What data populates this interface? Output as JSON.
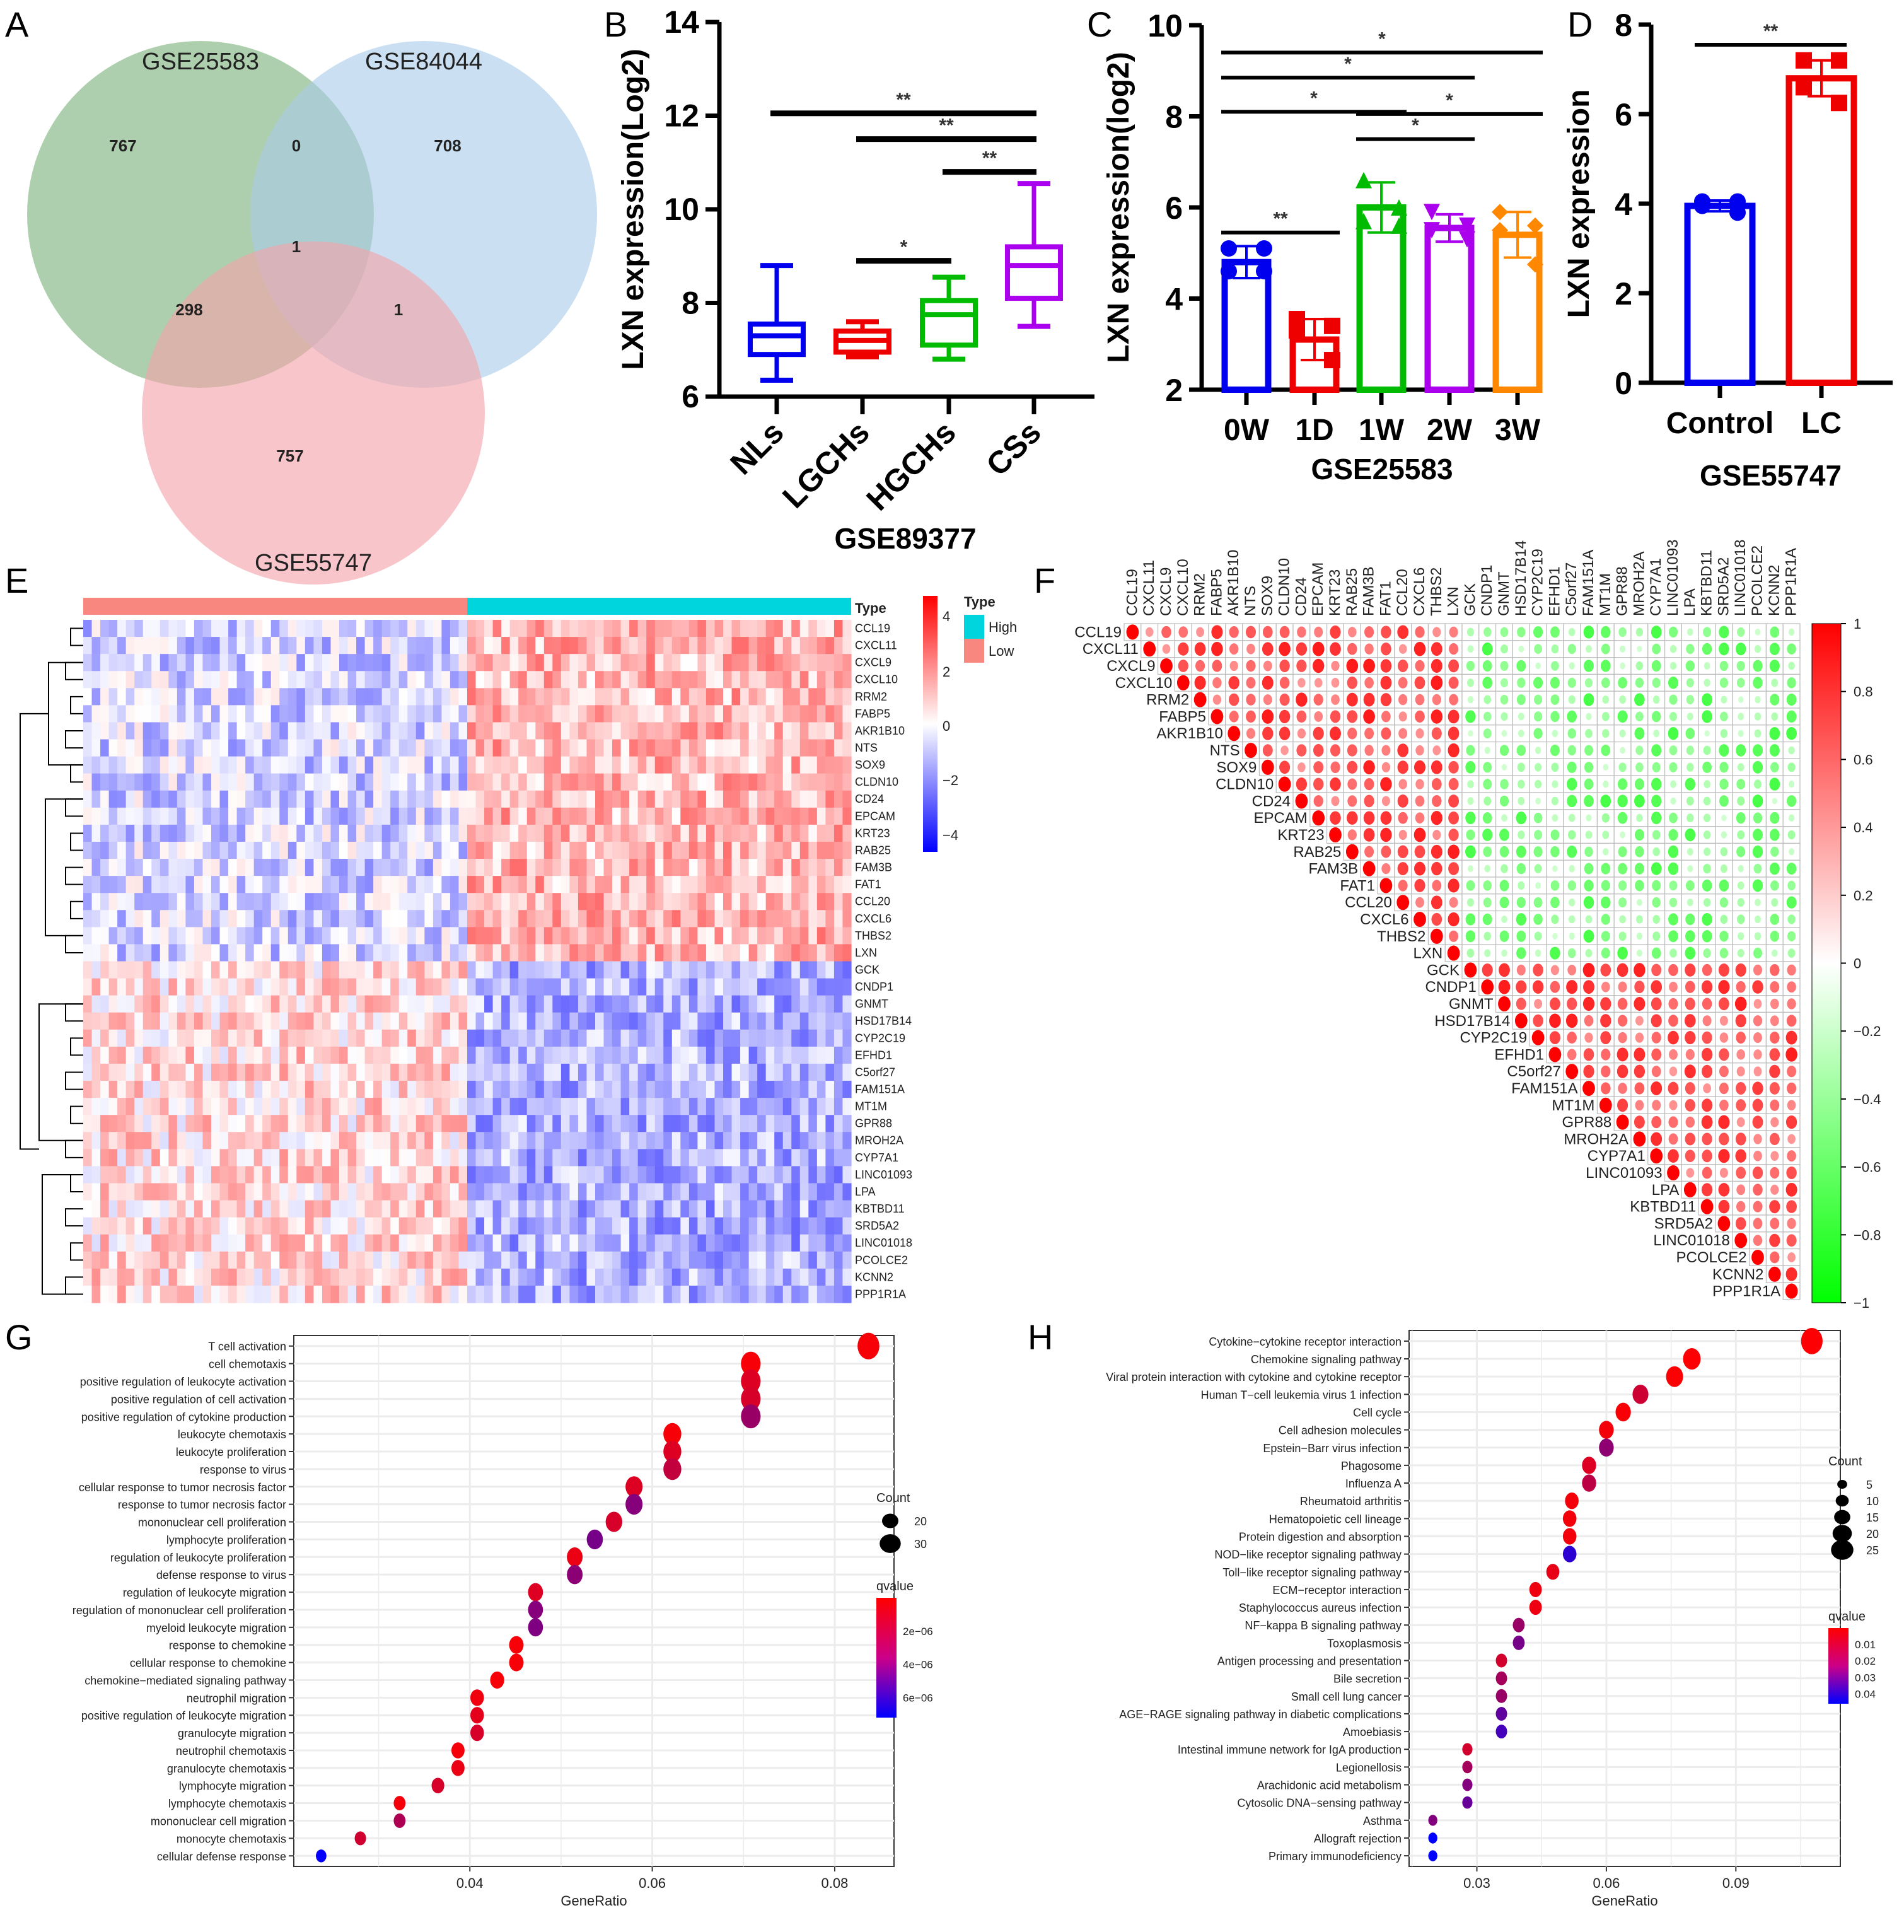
{
  "panels": {
    "A": "A",
    "B": "B",
    "C": "C",
    "D": "D",
    "E": "E",
    "F": "F",
    "G": "G",
    "H": "H"
  },
  "chart_data": [
    {
      "id": "A",
      "type": "venn",
      "sets": [
        {
          "name": "GSE25583",
          "color": "#7cb27a"
        },
        {
          "name": "GSE84044",
          "color": "#a9cbe8"
        },
        {
          "name": "GSE55747",
          "color": "#f4a3aa"
        }
      ],
      "regions": {
        "only_GSE25583": 767,
        "only_GSE84044": 708,
        "only_GSE55747": 757,
        "GSE25583_GSE84044": 0,
        "GSE25583_GSE55747": 298,
        "GSE84044_GSE55747": 1,
        "all_three": 1
      }
    },
    {
      "id": "B",
      "type": "boxplot",
      "xlabel": "GSE89377",
      "ylabel": "LXN expression(Log2)",
      "ylim": [
        6,
        14
      ],
      "yticks": [
        "6",
        "8",
        "10",
        "12",
        "14"
      ],
      "categories": [
        "NLs",
        "LGCHs",
        "HGCHs",
        "CSs"
      ],
      "colors": [
        "#0000ee",
        "#ee0000",
        "#00bb00",
        "#aa00ee"
      ],
      "boxes": [
        {
          "min": 6.35,
          "q1": 6.9,
          "median": 7.3,
          "q3": 7.55,
          "max": 8.8
        },
        {
          "min": 6.85,
          "q1": 6.95,
          "median": 7.2,
          "q3": 7.4,
          "max": 7.6
        },
        {
          "min": 6.8,
          "q1": 7.1,
          "median": 7.75,
          "q3": 8.05,
          "max": 8.55
        },
        {
          "min": 7.5,
          "q1": 8.1,
          "median": 8.8,
          "q3": 9.2,
          "max": 10.55
        }
      ],
      "significance": [
        {
          "from": 0,
          "to": 3,
          "y": 12.05,
          "label": "**"
        },
        {
          "from": 1,
          "to": 3,
          "y": 11.5,
          "label": "**"
        },
        {
          "from": 2,
          "to": 3,
          "y": 10.8,
          "label": "**"
        },
        {
          "from": 1,
          "to": 2,
          "y": 8.9,
          "label": "*"
        }
      ]
    },
    {
      "id": "C",
      "type": "bar",
      "xlabel": "GSE25583",
      "ylabel": "LXN expression(log2)",
      "ylim": [
        2,
        10
      ],
      "yticks": [
        "2",
        "4",
        "6",
        "8",
        "10"
      ],
      "categories": [
        "0W",
        "1D",
        "1W",
        "2W",
        "3W"
      ],
      "colors": [
        "#0000ee",
        "#ee0000",
        "#00bb00",
        "#aa00ee",
        "#ff8800"
      ],
      "markers": [
        "circle",
        "square",
        "triangle-up",
        "triangle-down",
        "diamond"
      ],
      "values": [
        4.8,
        3.1,
        6.0,
        5.55,
        5.4
      ],
      "errors": [
        0.35,
        0.45,
        0.55,
        0.3,
        0.5
      ],
      "points": [
        [
          5.1,
          5.1,
          4.6,
          4.6
        ],
        [
          3.55,
          3.4,
          3.3,
          2.65
        ],
        [
          6.6,
          6.0,
          5.7,
          5.6
        ],
        [
          5.9,
          5.6,
          5.5,
          5.3
        ],
        [
          5.9,
          5.6,
          5.5,
          4.75
        ]
      ],
      "significance": [
        {
          "from": 0,
          "to": 4,
          "y": 9.4,
          "label": "*"
        },
        {
          "from": 0,
          "to": 3,
          "y": 8.85,
          "label": "*"
        },
        {
          "from": 0,
          "to": 2,
          "y": 8.1,
          "label": "*"
        },
        {
          "from": 2,
          "to": 4,
          "y": 8.05,
          "label": "*"
        },
        {
          "from": 2,
          "to": 3,
          "y": 7.5,
          "label": "*"
        },
        {
          "from": 0,
          "to": 1,
          "y": 5.45,
          "label": "**"
        }
      ]
    },
    {
      "id": "D",
      "type": "bar",
      "xlabel": "GSE55747",
      "ylabel": "LXN expression",
      "ylim": [
        0,
        8
      ],
      "yticks": [
        "0",
        "2",
        "4",
        "6",
        "8"
      ],
      "categories": [
        "Control",
        "LC"
      ],
      "colors": [
        "#0000ee",
        "#ee0000"
      ],
      "markers": [
        "circle",
        "square"
      ],
      "values": [
        3.95,
        6.8
      ],
      "errors": [
        0.12,
        0.4
      ],
      "points": [
        [
          4.05,
          4.05,
          3.95,
          3.8
        ],
        [
          7.2,
          7.2,
          6.6,
          6.25
        ]
      ],
      "significance": [
        {
          "from": 0,
          "to": 1,
          "y": 7.55,
          "label": "**"
        }
      ]
    },
    {
      "id": "E",
      "type": "heatmap",
      "annotation_title": "Type",
      "groups": [
        {
          "name": "Low",
          "color": "#f8877f"
        },
        {
          "name": "High",
          "color": "#00d5dd"
        }
      ],
      "legend_order": [
        "High",
        "Low"
      ],
      "samples_per_group": 45,
      "colorbar": {
        "min": -4.5,
        "max": 4.5,
        "ticks": [
          "4",
          "2",
          "0",
          "−2",
          "−4"
        ],
        "low": "#0000ff",
        "mid": "#ffffff",
        "high": "#ff0000"
      },
      "genes_up_in_high": [
        "CCL19",
        "CXCL11",
        "CXCL9",
        "CXCL10",
        "RRM2",
        "FABP5",
        "AKR1B10",
        "NTS",
        "SOX9",
        "CLDN10",
        "CD24",
        "EPCAM",
        "KRT23",
        "RAB25",
        "FAM3B",
        "FAT1",
        "CCL20",
        "CXCL6",
        "THBS2",
        "LXN"
      ],
      "genes_down_in_high": [
        "GCK",
        "CNDP1",
        "GNMT",
        "HSD17B14",
        "CYP2C19",
        "EFHD1",
        "C5orf27",
        "FAM151A",
        "MT1M",
        "GPR88",
        "MROH2A",
        "CYP7A1",
        "LINC01093",
        "LPA",
        "KBTBD11",
        "SRD5A2",
        "LINC01018",
        "PCOLCE2",
        "KCNN2",
        "PPP1R1A"
      ]
    },
    {
      "id": "F",
      "type": "correlation",
      "genes": [
        "CCL19",
        "CXCL11",
        "CXCL9",
        "CXCL10",
        "RRM2",
        "FABP5",
        "AKR1B10",
        "NTS",
        "SOX9",
        "CLDN10",
        "CD24",
        "EPCAM",
        "KRT23",
        "RAB25",
        "FAM3B",
        "FAT1",
        "CCL20",
        "CXCL6",
        "THBS2",
        "LXN",
        "GCK",
        "CNDP1",
        "GNMT",
        "HSD17B14",
        "CYP2C19",
        "EFHD1",
        "C5orf27",
        "FAM151A",
        "MT1M",
        "GPR88",
        "MROH2A",
        "CYP7A1",
        "LINC01093",
        "LPA",
        "KBTBD11",
        "SRD5A2",
        "LINC01018",
        "PCOLCE2",
        "KCNN2",
        "PPP1R1A"
      ],
      "block_split": 20,
      "within_block_r": 0.65,
      "between_block_r": -0.45,
      "colorbar": {
        "min": -1,
        "max": 1,
        "ticks": [
          "1",
          "0.8",
          "0.6",
          "0.4",
          "0.2",
          "0",
          "−0.2",
          "−0.4",
          "−0.6",
          "−0.8",
          "−1"
        ],
        "pos": "#ff0000",
        "neg": "#00ff00"
      }
    },
    {
      "id": "G",
      "type": "scatter",
      "xlabel": "GeneRatio",
      "xlim": [
        0.0207,
        0.0865
      ],
      "xticks": [
        0.04,
        0.06,
        0.08
      ],
      "xtick_labels": [
        "0.04",
        "0.06",
        "0.08"
      ],
      "legend_count": {
        "title": "Count",
        "values": [
          20,
          30
        ]
      },
      "legend_q": {
        "title": "qvalue",
        "ticks": [
          "2e−06",
          "4e−06",
          "6e−06"
        ],
        "range": [
          0,
          7.5e-06
        ]
      },
      "terms": [
        {
          "term": "T cell activation",
          "x": 0.0837,
          "count": 36,
          "q": 2e-07
        },
        {
          "term": "cell chemotaxis",
          "x": 0.0708,
          "count": 31,
          "q": 2e-07
        },
        {
          "term": "positive regulation of leukocyte activation",
          "x": 0.0708,
          "count": 31,
          "q": 1e-06
        },
        {
          "term": "positive regulation of cell activation",
          "x": 0.0708,
          "count": 31,
          "q": 1.2e-06
        },
        {
          "term": "positive regulation of cytokine production",
          "x": 0.0708,
          "count": 31,
          "q": 3e-06
        },
        {
          "term": "leukocyte chemotaxis",
          "x": 0.0622,
          "count": 27,
          "q": 2e-07
        },
        {
          "term": "leukocyte proliferation",
          "x": 0.0622,
          "count": 27,
          "q": 1e-06
        },
        {
          "term": "response to virus",
          "x": 0.0622,
          "count": 27,
          "q": 1.8e-06
        },
        {
          "term": "cellular response to tumor necrosis factor",
          "x": 0.058,
          "count": 25,
          "q": 1e-06
        },
        {
          "term": "response to tumor necrosis factor",
          "x": 0.058,
          "count": 25,
          "q": 3.6e-06
        },
        {
          "term": "mononuclear cell proliferation",
          "x": 0.0558,
          "count": 24,
          "q": 1.2e-06
        },
        {
          "term": "lymphocyte proliferation",
          "x": 0.0537,
          "count": 23,
          "q": 4e-06
        },
        {
          "term": "regulation of leukocyte proliferation",
          "x": 0.0515,
          "count": 22,
          "q": 6e-07
        },
        {
          "term": "defense response to virus",
          "x": 0.0515,
          "count": 22,
          "q": 3.4e-06
        },
        {
          "term": "regulation of leukocyte migration",
          "x": 0.0472,
          "count": 20,
          "q": 1e-06
        },
        {
          "term": "regulation of mononuclear cell proliferation",
          "x": 0.0472,
          "count": 20,
          "q": 3.6e-06
        },
        {
          "term": "myeloid leukocyte migration",
          "x": 0.0472,
          "count": 20,
          "q": 3.8e-06
        },
        {
          "term": "response to chemokine",
          "x": 0.0451,
          "count": 19,
          "q": 2e-07
        },
        {
          "term": "cellular response to chemokine",
          "x": 0.0451,
          "count": 19,
          "q": 2e-07
        },
        {
          "term": "chemokine−mediated signaling pathway",
          "x": 0.043,
          "count": 18,
          "q": 2e-07
        },
        {
          "term": "neutrophil migration",
          "x": 0.0408,
          "count": 17,
          "q": 4e-07
        },
        {
          "term": "positive regulation of leukocyte migration",
          "x": 0.0408,
          "count": 17,
          "q": 8e-07
        },
        {
          "term": "granulocyte migration",
          "x": 0.0408,
          "count": 17,
          "q": 1.2e-06
        },
        {
          "term": "neutrophil chemotaxis",
          "x": 0.0387,
          "count": 16,
          "q": 3e-07
        },
        {
          "term": "granulocyte chemotaxis",
          "x": 0.0387,
          "count": 16,
          "q": 6e-07
        },
        {
          "term": "lymphocyte migration",
          "x": 0.0365,
          "count": 15,
          "q": 1.2e-06
        },
        {
          "term": "lymphocyte chemotaxis",
          "x": 0.0323,
          "count": 13,
          "q": 3e-07
        },
        {
          "term": "mononuclear cell migration",
          "x": 0.0323,
          "count": 13,
          "q": 2.4e-06
        },
        {
          "term": "monocyte chemotaxis",
          "x": 0.028,
          "count": 12,
          "q": 1.4e-06
        },
        {
          "term": "cellular defense response",
          "x": 0.0237,
          "count": 10,
          "q": 7.4e-06
        }
      ]
    },
    {
      "id": "H",
      "type": "scatter",
      "xlabel": "GeneRatio",
      "xlim": [
        0.0143,
        0.1142
      ],
      "xticks": [
        0.03,
        0.06,
        0.09
      ],
      "xtick_labels": [
        "0.03",
        "0.06",
        "0.09"
      ],
      "legend_count": {
        "title": "Count",
        "values": [
          5,
          10,
          15,
          20,
          25
        ]
      },
      "legend_q": {
        "title": "qvalue",
        "ticks": [
          "0.01",
          "0.02",
          "0.03",
          "0.04"
        ],
        "range": [
          0,
          0.045
        ]
      },
      "terms": [
        {
          "term": "Cytokine−cytokine receptor interaction",
          "x": 0.1076,
          "count": 27,
          "q": 0.0005
        },
        {
          "term": "Chemokine signaling pathway",
          "x": 0.0798,
          "count": 20,
          "q": 0.0005
        },
        {
          "term": "Viral protein interaction with cytokine and cytokine receptor",
          "x": 0.0758,
          "count": 19,
          "q": 0.0005
        },
        {
          "term": "Human T−cell leukemia virus 1 infection",
          "x": 0.0679,
          "count": 17,
          "q": 0.009
        },
        {
          "term": "Cell cycle",
          "x": 0.0639,
          "count": 16,
          "q": 0.001
        },
        {
          "term": "Cell adhesion molecules",
          "x": 0.06,
          "count": 15,
          "q": 0.002
        },
        {
          "term": "Epstein−Barr virus infection",
          "x": 0.06,
          "count": 15,
          "q": 0.02
        },
        {
          "term": "Phagosome",
          "x": 0.056,
          "count": 14,
          "q": 0.006
        },
        {
          "term": "Influenza A",
          "x": 0.056,
          "count": 14,
          "q": 0.012
        },
        {
          "term": "Rheumatoid arthritis",
          "x": 0.052,
          "count": 13,
          "q": 0.002
        },
        {
          "term": "Hematopoietic cell lineage",
          "x": 0.0515,
          "count": 13,
          "q": 0.002
        },
        {
          "term": "Protein digestion and absorption",
          "x": 0.0515,
          "count": 13,
          "q": 0.002
        },
        {
          "term": "NOD−like receptor signaling pathway",
          "x": 0.0515,
          "count": 13,
          "q": 0.037
        },
        {
          "term": "Toll−like receptor signaling pathway",
          "x": 0.0476,
          "count": 12,
          "q": 0.004
        },
        {
          "term": "ECM−receptor interaction",
          "x": 0.0436,
          "count": 11,
          "q": 0.003
        },
        {
          "term": "Staphylococcus aureus infection",
          "x": 0.0436,
          "count": 11,
          "q": 0.003
        },
        {
          "term": "NF−kappa B signaling pathway",
          "x": 0.0397,
          "count": 10,
          "q": 0.018
        },
        {
          "term": "Toxoplasmosis",
          "x": 0.0397,
          "count": 10,
          "q": 0.024
        },
        {
          "term": "Antigen processing and presentation",
          "x": 0.0357,
          "count": 9,
          "q": 0.008
        },
        {
          "term": "Bile secretion",
          "x": 0.0357,
          "count": 9,
          "q": 0.016
        },
        {
          "term": "Small cell lung cancer",
          "x": 0.0357,
          "count": 9,
          "q": 0.018
        },
        {
          "term": "AGE−RAGE signaling pathway in diabetic complications",
          "x": 0.0357,
          "count": 9,
          "q": 0.028
        },
        {
          "term": "Amoebiasis",
          "x": 0.0357,
          "count": 9,
          "q": 0.033
        },
        {
          "term": "Intestinal immune network for IgA production",
          "x": 0.0278,
          "count": 7,
          "q": 0.008
        },
        {
          "term": "Legionellosis",
          "x": 0.0278,
          "count": 7,
          "q": 0.016
        },
        {
          "term": "Arachidonic acid metabolism",
          "x": 0.0278,
          "count": 7,
          "q": 0.022
        },
        {
          "term": "Cytosolic DNA−sensing pathway",
          "x": 0.0278,
          "count": 7,
          "q": 0.027
        },
        {
          "term": "Asthma",
          "x": 0.0198,
          "count": 5,
          "q": 0.022
        },
        {
          "term": "Allograft rejection",
          "x": 0.0198,
          "count": 5,
          "q": 0.045
        },
        {
          "term": "Primary immunodeficiency",
          "x": 0.0198,
          "count": 5,
          "q": 0.045
        }
      ]
    }
  ]
}
